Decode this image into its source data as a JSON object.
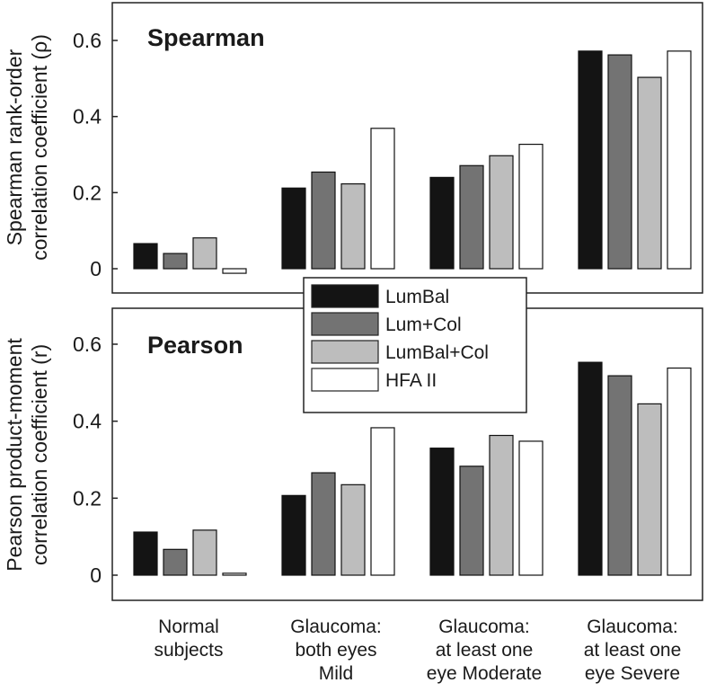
{
  "chart_data": [
    {
      "type": "bar",
      "title": "Spearman",
      "ylabel_line1": "Spearman rank-order",
      "ylabel_line2": "correlation coefficient (ρ)",
      "ylim": [
        -0.07,
        0.71
      ],
      "yticks": [
        {
          "value": 0,
          "label": "0"
        },
        {
          "value": 0.2,
          "label": "0.2"
        },
        {
          "value": 0.4,
          "label": "0.4"
        },
        {
          "value": 0.6,
          "label": "0.6"
        }
      ],
      "categories": [
        "Normal subjects",
        "Glaucoma: both eyes Mild",
        "Glaucoma: at least one eye Moderate",
        "Glaucoma: at least one eye Severe"
      ],
      "series": [
        {
          "name": "LumBal",
          "color": "#141414",
          "values": [
            0.066,
            0.212,
            0.24,
            0.572
          ]
        },
        {
          "name": "Lum+Col",
          "color": "#737373",
          "values": [
            0.04,
            0.254,
            0.271,
            0.562
          ]
        },
        {
          "name": "LumBal+Col",
          "color": "#bdbdbd",
          "values": [
            0.081,
            0.223,
            0.297,
            0.503
          ]
        },
        {
          "name": "HFA II",
          "color": "#ffffff",
          "values": [
            -0.012,
            0.369,
            0.327,
            0.572
          ]
        }
      ]
    },
    {
      "type": "bar",
      "title": "Pearson",
      "ylabel_line1": "Pearson product-moment",
      "ylabel_line2": "correlation coefficient (r)",
      "ylim": [
        -0.07,
        0.71
      ],
      "yticks": [
        {
          "value": 0,
          "label": "0"
        },
        {
          "value": 0.2,
          "label": "0.2"
        },
        {
          "value": 0.4,
          "label": "0.4"
        },
        {
          "value": 0.6,
          "label": "0.6"
        }
      ],
      "categories": [
        "Normal subjects",
        "Glaucoma: both eyes Mild",
        "Glaucoma: at least one eye Moderate",
        "Glaucoma: at least one eye Severe"
      ],
      "series": [
        {
          "name": "LumBal",
          "color": "#141414",
          "values": [
            0.112,
            0.207,
            0.33,
            0.553
          ]
        },
        {
          "name": "Lum+Col",
          "color": "#737373",
          "values": [
            0.067,
            0.266,
            0.283,
            0.518
          ]
        },
        {
          "name": "LumBal+Col",
          "color": "#bdbdbd",
          "values": [
            0.117,
            0.235,
            0.363,
            0.445
          ]
        },
        {
          "name": "HFA II",
          "color": "#ffffff",
          "values": [
            0.005,
            0.383,
            0.348,
            0.538
          ]
        }
      ]
    }
  ],
  "legend": [
    {
      "label": "LumBal",
      "color": "#141414"
    },
    {
      "label": "Lum+Col",
      "color": "#737373"
    },
    {
      "label": "LumBal+Col",
      "color": "#bdbdbd"
    },
    {
      "label": "HFA II",
      "color": "#ffffff"
    }
  ],
  "x_labels": [
    [
      "Normal",
      "subjects"
    ],
    [
      "Glaucoma:",
      "both eyes",
      "Mild"
    ],
    [
      "Glaucoma:",
      "at least one",
      "eye Moderate"
    ],
    [
      "Glaucoma:",
      "at least one",
      "eye Severe"
    ]
  ]
}
